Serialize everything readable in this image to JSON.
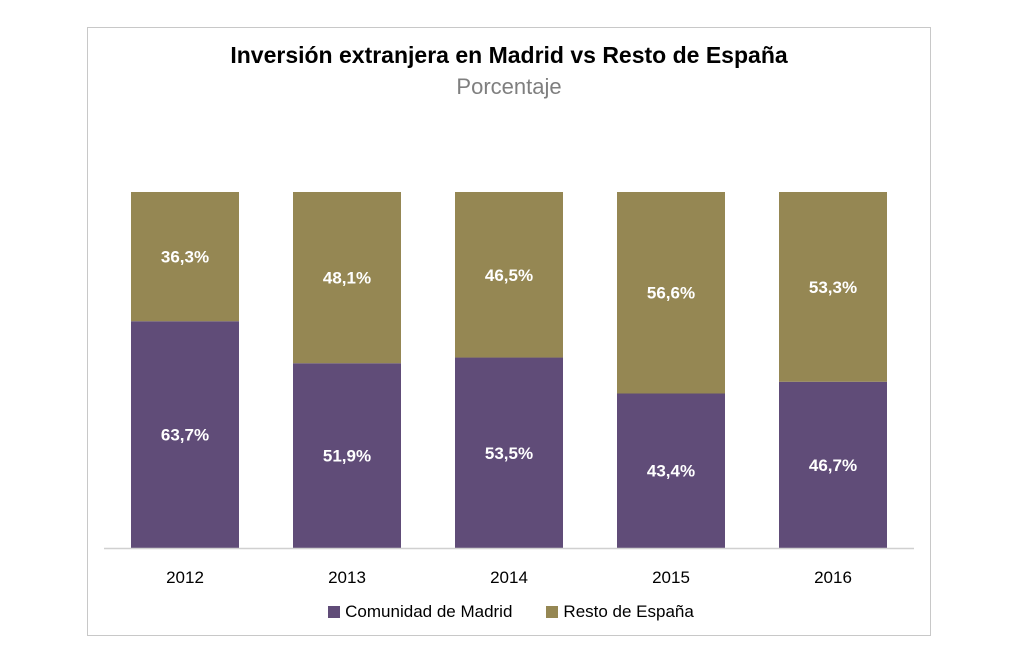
{
  "chart_data": {
    "type": "bar",
    "stacked": true,
    "title": "Inversión extranjera en Madrid vs Resto de España",
    "subtitle": "Porcentaje",
    "categories": [
      "2012",
      "2013",
      "2014",
      "2015",
      "2016"
    ],
    "series": [
      {
        "name": "Comunidad de Madrid",
        "color": "#604c78",
        "values": [
          63.7,
          51.9,
          53.5,
          43.4,
          46.7
        ],
        "labels": [
          "63,7%",
          "51,9%",
          "53,5%",
          "43,4%",
          "46,7%"
        ]
      },
      {
        "name": "Resto de España",
        "color": "#958753",
        "values": [
          36.3,
          48.1,
          46.5,
          56.6,
          53.3
        ],
        "labels": [
          "36,3%",
          "48,1%",
          "46,5%",
          "56,6%",
          "53,3%"
        ]
      }
    ],
    "ylim": [
      0,
      100
    ],
    "grid": false,
    "legend_position": "bottom"
  }
}
